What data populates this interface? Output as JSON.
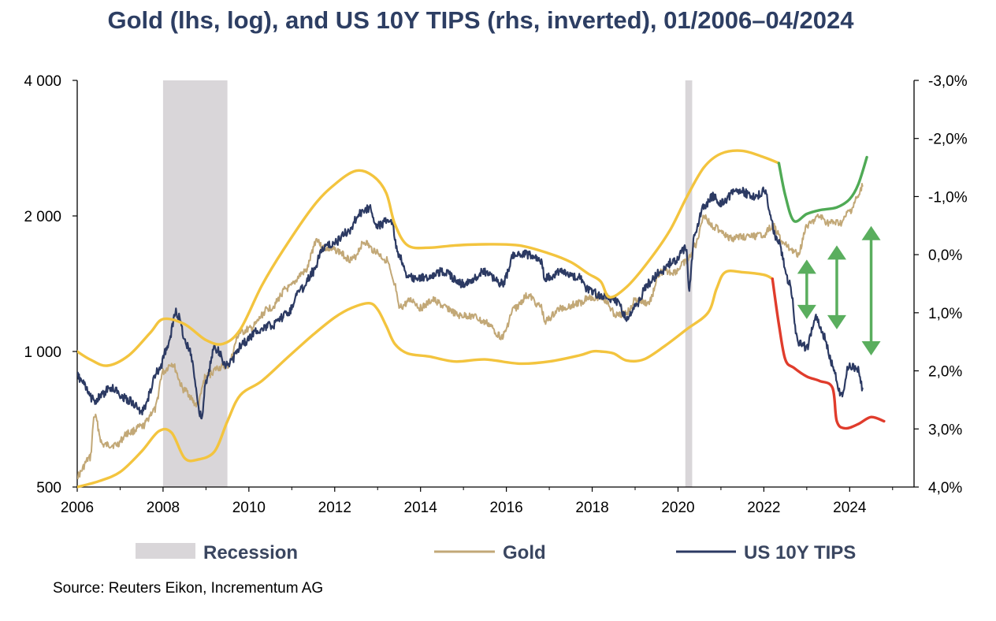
{
  "chart_data": {
    "type": "line",
    "title": "Gold (lhs, log), and US 10Y TIPS (rhs, inverted), 01/2006–04/2024",
    "source": "Source: Reuters Eikon, Incrementum AG",
    "x_axis": {
      "range": [
        2006.0,
        2025.5
      ],
      "ticks": [
        2006,
        2008,
        2010,
        2012,
        2014,
        2016,
        2018,
        2020,
        2022,
        2024
      ]
    },
    "y_left": {
      "scale": "log",
      "range": [
        500,
        4000
      ],
      "ticks": [
        500,
        1000,
        2000,
        4000
      ],
      "tick_labels": [
        "500",
        "1 000",
        "2 000",
        "4 000"
      ]
    },
    "y_right": {
      "inverted": true,
      "range": [
        -3.0,
        4.0
      ],
      "ticks": [
        -3,
        -2,
        -1,
        0,
        1,
        2,
        3,
        4
      ],
      "tick_labels": [
        "-3,0%",
        "-2,0%",
        "-1,0%",
        "0,0%",
        "1,0%",
        "2,0%",
        "3,0%",
        "4,0%"
      ]
    },
    "legend": {
      "placement": "bottom",
      "entries": [
        "Recession",
        "Gold",
        "US 10Y TIPS"
      ]
    },
    "recessions": [
      {
        "start": 2008.0,
        "end": 2009.5
      },
      {
        "start": 2020.17,
        "end": 2020.33
      }
    ],
    "colors": {
      "gold": "#c2a877",
      "tips": "#2c3a63",
      "band": "#f3c43e",
      "recession": "#d9d6d9",
      "upper_projection": "#4faa55",
      "lower_projection": "#e03c2c",
      "arrows": "#5aae5e",
      "title": "#2d3e63"
    },
    "series": [
      {
        "name": "Gold",
        "axis": "left",
        "x": [
          2006.0,
          2006.3,
          2006.4,
          2006.6,
          2006.9,
          2007.2,
          2007.5,
          2007.8,
          2008.0,
          2008.2,
          2008.5,
          2008.8,
          2009.0,
          2009.3,
          2009.5,
          2009.8,
          2010.0,
          2010.5,
          2010.9,
          2011.3,
          2011.6,
          2011.7,
          2012.0,
          2012.4,
          2012.7,
          2012.9,
          2013.2,
          2013.4,
          2013.5,
          2013.8,
          2014.0,
          2014.3,
          2014.6,
          2014.9,
          2015.2,
          2015.5,
          2015.9,
          2016.2,
          2016.5,
          2016.8,
          2016.9,
          2017.3,
          2017.7,
          2017.9,
          2018.2,
          2018.6,
          2018.8,
          2019.0,
          2019.3,
          2019.6,
          2019.9,
          2020.2,
          2020.4,
          2020.6,
          2020.8,
          2021.0,
          2021.2,
          2021.5,
          2021.8,
          2022.0,
          2022.2,
          2022.5,
          2022.8,
          2023.0,
          2023.3,
          2023.5,
          2023.8,
          2024.0,
          2024.2,
          2024.3
        ],
        "y": [
          530,
          580,
          720,
          620,
          620,
          660,
          680,
          740,
          900,
          940,
          820,
          760,
          880,
          920,
          930,
          1100,
          1120,
          1250,
          1380,
          1500,
          1780,
          1700,
          1680,
          1600,
          1750,
          1680,
          1600,
          1400,
          1250,
          1300,
          1250,
          1300,
          1250,
          1200,
          1200,
          1160,
          1080,
          1250,
          1330,
          1260,
          1170,
          1250,
          1280,
          1320,
          1320,
          1200,
          1220,
          1300,
          1280,
          1500,
          1500,
          1580,
          1720,
          2000,
          1900,
          1860,
          1780,
          1800,
          1800,
          1820,
          1900,
          1720,
          1650,
          1900,
          1990,
          1930,
          1930,
          2050,
          2200,
          2330
        ]
      },
      {
        "name": "US 10Y TIPS",
        "axis": "right",
        "x": [
          2006.0,
          2006.4,
          2006.8,
          2007.2,
          2007.5,
          2007.9,
          2008.1,
          2008.3,
          2008.6,
          2008.9,
          2009.0,
          2009.2,
          2009.5,
          2009.9,
          2010.2,
          2010.6,
          2010.9,
          2011.2,
          2011.5,
          2011.7,
          2012.0,
          2012.3,
          2012.6,
          2012.8,
          2013.0,
          2013.3,
          2013.5,
          2013.7,
          2014.0,
          2014.5,
          2015.0,
          2015.5,
          2015.9,
          2016.2,
          2016.5,
          2016.8,
          2016.9,
          2017.3,
          2017.7,
          2017.9,
          2018.2,
          2018.6,
          2018.8,
          2019.0,
          2019.3,
          2019.6,
          2019.9,
          2020.2,
          2020.25,
          2020.4,
          2020.6,
          2020.8,
          2021.0,
          2021.4,
          2021.8,
          2022.0,
          2022.3,
          2022.6,
          2022.8,
          2023.0,
          2023.2,
          2023.4,
          2023.6,
          2023.8,
          2024.0,
          2024.2,
          2024.3
        ],
        "y": [
          2.1,
          2.5,
          2.3,
          2.5,
          2.7,
          2.0,
          1.6,
          1.0,
          1.6,
          2.8,
          2.2,
          1.6,
          1.9,
          1.5,
          1.3,
          1.2,
          1.0,
          0.6,
          0.3,
          -0.1,
          -0.2,
          -0.4,
          -0.7,
          -0.8,
          -0.5,
          -0.6,
          0.0,
          0.4,
          0.4,
          0.3,
          0.5,
          0.3,
          0.5,
          0.0,
          0.0,
          0.1,
          0.4,
          0.3,
          0.4,
          0.6,
          0.7,
          0.8,
          1.1,
          0.9,
          0.5,
          0.3,
          0.1,
          -0.1,
          0.6,
          -0.4,
          -0.8,
          -1.0,
          -0.9,
          -1.1,
          -1.0,
          -1.1,
          -0.3,
          0.5,
          1.5,
          1.6,
          1.1,
          1.4,
          1.9,
          2.4,
          1.9,
          2.0,
          2.3
        ]
      },
      {
        "name": "",
        "role": "upper band",
        "axis": "left",
        "x": [
          2006.0,
          2006.3,
          2006.7,
          2007.2,
          2007.7,
          2008.0,
          2008.5,
          2009.0,
          2009.4,
          2009.8,
          2010.3,
          2010.8,
          2011.5,
          2012.0,
          2012.5,
          2012.9,
          2013.2,
          2013.4,
          2013.7,
          2014.2,
          2014.8,
          2015.5,
          2016.3,
          2017.0,
          2017.5,
          2017.9,
          2018.2,
          2018.4,
          2018.8,
          2019.3,
          2019.8,
          2020.2,
          2020.6,
          2021.0,
          2021.5,
          2022.0,
          2022.35
        ],
        "y": [
          1000,
          960,
          930,
          980,
          1100,
          1180,
          1150,
          1060,
          1040,
          1120,
          1400,
          1680,
          2100,
          2350,
          2520,
          2450,
          2250,
          1920,
          1720,
          1700,
          1720,
          1730,
          1720,
          1650,
          1580,
          1490,
          1430,
          1320,
          1390,
          1580,
          1850,
          2200,
          2560,
          2750,
          2790,
          2700,
          2620
        ]
      },
      {
        "name": "",
        "role": "lower band",
        "axis": "left",
        "x": [
          2006.0,
          2006.5,
          2007.0,
          2007.5,
          2007.9,
          2008.2,
          2008.5,
          2008.8,
          2009.2,
          2009.5,
          2009.8,
          2010.3,
          2010.9,
          2011.5,
          2012.0,
          2012.4,
          2012.8,
          2013.0,
          2013.2,
          2013.4,
          2013.7,
          2014.2,
          2014.8,
          2015.5,
          2016.3,
          2017.0,
          2017.7,
          2018.0,
          2018.2,
          2018.5,
          2018.8,
          2019.2,
          2019.7,
          2020.2,
          2020.7,
          2020.9,
          2021.1,
          2021.5,
          2022.0,
          2022.2
        ],
        "y": [
          500,
          515,
          540,
          600,
          665,
          660,
          580,
          575,
          600,
          700,
          800,
          860,
          970,
          1090,
          1190,
          1250,
          1280,
          1240,
          1140,
          1040,
          990,
          975,
          950,
          960,
          940,
          950,
          980,
          1000,
          1000,
          990,
          955,
          960,
          1030,
          1120,
          1220,
          1380,
          1500,
          1500,
          1480,
          1450
        ]
      },
      {
        "name": "",
        "role": "upper projection",
        "axis": "left",
        "x": [
          2022.35,
          2022.5,
          2022.7,
          2023.0,
          2023.3,
          2023.7,
          2024.0,
          2024.2,
          2024.4
        ],
        "y": [
          2620,
          2220,
          1950,
          2020,
          2060,
          2090,
          2180,
          2350,
          2700
        ]
      },
      {
        "name": "",
        "role": "lower projection",
        "axis": "left",
        "x": [
          2022.2,
          2022.35,
          2022.5,
          2022.7,
          2023.0,
          2023.3,
          2023.6,
          2023.7,
          2023.9,
          2024.2,
          2024.5,
          2024.8
        ],
        "y": [
          1450,
          1150,
          960,
          920,
          880,
          860,
          830,
          700,
          675,
          690,
          715,
          700
        ]
      }
    ],
    "arrows": [
      {
        "x": 2023.0,
        "top": 1600,
        "bottom": 1180
      },
      {
        "x": 2023.7,
        "top": 1720,
        "bottom": 1120
      },
      {
        "x": 2024.5,
        "top": 1900,
        "bottom": 980
      }
    ]
  }
}
